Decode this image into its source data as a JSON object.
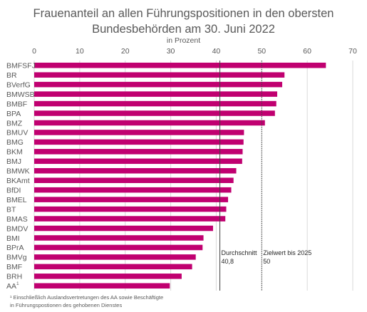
{
  "chart_data": {
    "type": "bar",
    "orientation": "horizontal",
    "title_line1": "Frauenanteil an allen Führungspositionen in den obersten",
    "title_line2": "Bundesbehörden am 30. Juni 2022",
    "subtitle": "in Prozent",
    "categories": [
      "BMFSFJ",
      "BR",
      "BVerfG",
      "BMWSB",
      "BMBF",
      "BPA",
      "BMZ",
      "BMUV",
      "BMG",
      "BKM",
      "BMJ",
      "BMWK",
      "BKAmt",
      "BfDI",
      "BMEL",
      "BT",
      "BMAS",
      "BMDV",
      "BMI",
      "BPrA",
      "BMVg",
      "BMF",
      "BRH",
      "AA"
    ],
    "values": [
      64.1,
      55.0,
      54.5,
      53.4,
      53.2,
      52.9,
      50.7,
      46.1,
      46.0,
      45.8,
      45.7,
      44.4,
      43.8,
      43.3,
      42.6,
      42.2,
      42.0,
      39.3,
      37.2,
      37.0,
      35.5,
      34.7,
      32.4,
      29.8
    ],
    "superscript": {
      "AA": "1"
    },
    "xlim": [
      0,
      70
    ],
    "xticks": [
      0,
      10,
      20,
      30,
      40,
      50,
      60,
      70
    ],
    "grid": true,
    "bar_color": "#c00070",
    "reference_lines": [
      {
        "label": "Durchschnitt",
        "value_label": "40,8",
        "value": 40.8,
        "style": "solid"
      },
      {
        "label": "Zielwert bis 2025",
        "value_label": "50",
        "value": 50,
        "style": "dotted"
      }
    ],
    "footnote_line1": "¹ Einschließlich Auslandsvertretungen des AA sowie Beschäftigte",
    "footnote_line2": "in Führungspostionen des gehobenen Dienstes"
  }
}
